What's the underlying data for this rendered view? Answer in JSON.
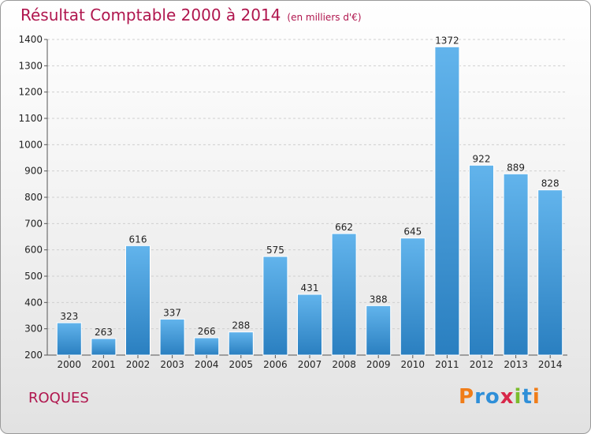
{
  "header": {
    "title": "Résultat Comptable 2000 à 2014",
    "subtitle": "(en milliers d'€)"
  },
  "footer": {
    "commune": "ROQUES",
    "brand": "Proxiti"
  },
  "colors": {
    "title": "#b0164e",
    "bar_top": "#62b4ec",
    "bar_bottom": "#2a7fc0",
    "logo_letters": [
      "#f07d19",
      "#2f8fd8",
      "#2f8fd8",
      "#d8284a",
      "#7bbc2c",
      "#2f8fd8",
      "#f07d19"
    ]
  },
  "chart_data": {
    "type": "bar",
    "title": "Résultat Comptable 2000 à 2014",
    "subtitle": "(en milliers d'€)",
    "categories": [
      "2000",
      "2001",
      "2002",
      "2003",
      "2004",
      "2005",
      "2006",
      "2007",
      "2008",
      "2009",
      "2010",
      "2011",
      "2012",
      "2013",
      "2014"
    ],
    "values": [
      323,
      263,
      616,
      337,
      266,
      288,
      575,
      431,
      662,
      388,
      645,
      1372,
      922,
      889,
      828
    ],
    "ylim": [
      200,
      1400
    ],
    "yticks": [
      200,
      300,
      400,
      500,
      600,
      700,
      800,
      900,
      1000,
      1100,
      1200,
      1300,
      1400
    ],
    "grid": true,
    "data_labels": true
  }
}
